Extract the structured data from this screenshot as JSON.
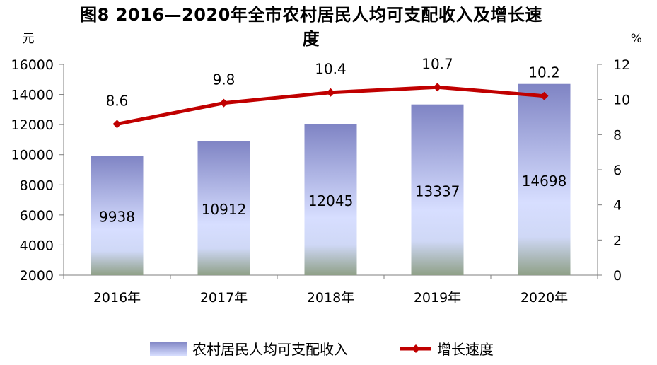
{
  "chart_data": {
    "type": "bar",
    "title_line1": "图8  2016—2020年全市农村居民人均可支配收入及增长速",
    "title_line2": "度",
    "categories": [
      "2016年",
      "2017年",
      "2018年",
      "2019年",
      "2020年"
    ],
    "series": [
      {
        "name": "农村居民人均可支配收入",
        "type": "bar",
        "axis": "left",
        "values": [
          9938,
          10912,
          12045,
          13337,
          14698
        ],
        "color_top": "#7f84c4",
        "color_bottom": "#d7deff"
      },
      {
        "name": "增长速度",
        "type": "line",
        "axis": "right",
        "values": [
          8.6,
          9.8,
          10.4,
          10.7,
          10.2
        ],
        "color": "#c00000"
      }
    ],
    "y_left": {
      "unit": "元",
      "ylim": [
        2000,
        16000
      ],
      "ticks": [
        "2000",
        "4000",
        "6000",
        "8000",
        "10000",
        "12000",
        "14000",
        "16000"
      ]
    },
    "y_right": {
      "unit": "%",
      "ylim": [
        0,
        12
      ],
      "ticks": [
        "0",
        "2",
        "4",
        "6",
        "8",
        "10",
        "12"
      ]
    },
    "grid": false,
    "legend_position": "bottom"
  }
}
